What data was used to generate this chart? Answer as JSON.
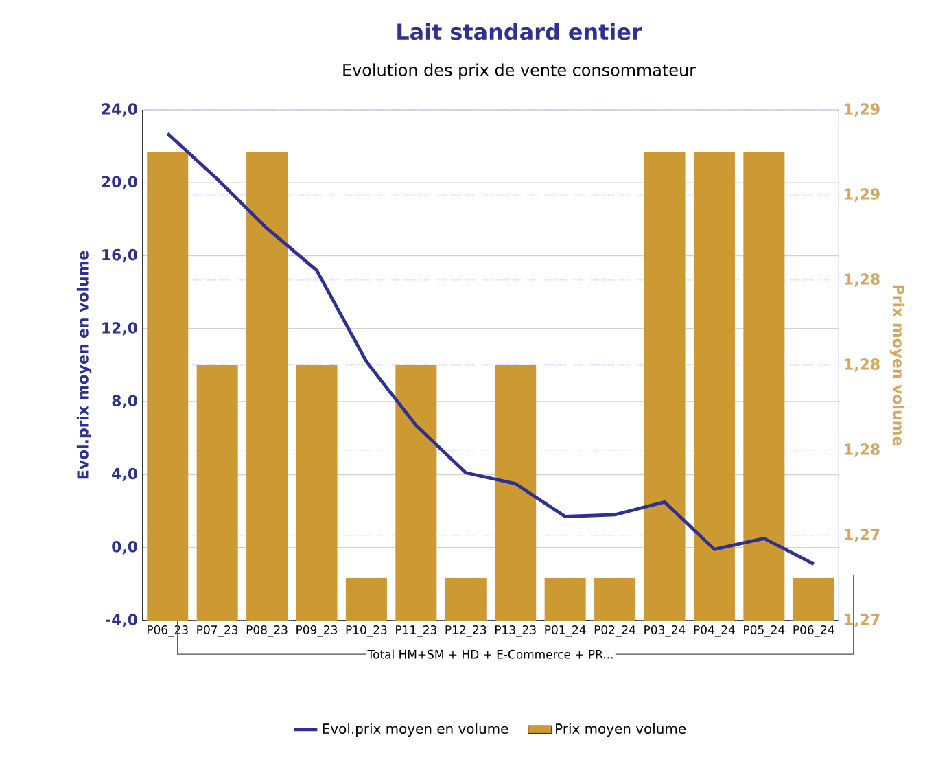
{
  "chart_data": {
    "type": "bar",
    "title": "Lait standard entier",
    "subtitle": "Evolution des prix de vente consommateur",
    "ylabel": "Evol.prix moyen en volume",
    "y2label": "Prix moyen volume",
    "categories": [
      "P06_23",
      "P07_23",
      "P08_23",
      "P09_23",
      "P10_23",
      "P11_23",
      "P12_23",
      "P13_23",
      "P01_24",
      "P02_24",
      "P03_24",
      "P04_24",
      "P05_24",
      "P06_24"
    ],
    "series": [
      {
        "name": "Evol.prix moyen en volume",
        "type": "line",
        "axis": "y",
        "color": "#2e3192",
        "values": [
          22.7,
          20.2,
          17.5,
          15.2,
          10.2,
          6.7,
          4.1,
          3.5,
          1.7,
          1.8,
          2.5,
          -0.1,
          0.5,
          -0.9
        ]
      },
      {
        "name": "Prix moyen volume",
        "axis": "y2",
        "color": "#cc9933",
        "values": [
          1.29,
          1.28,
          1.29,
          1.28,
          1.27,
          1.28,
          1.27,
          1.28,
          1.27,
          1.27,
          1.29,
          1.29,
          1.29,
          1.27
        ]
      }
    ],
    "ylim": [
      -4,
      24
    ],
    "yticks": [
      {
        "value": -4,
        "label": "-4,0"
      },
      {
        "value": 0,
        "label": "0,0"
      },
      {
        "value": 4,
        "label": "4,0"
      },
      {
        "value": 8,
        "label": "8,0"
      },
      {
        "value": 12,
        "label": "12,0"
      },
      {
        "value": 16,
        "label": "16,0"
      },
      {
        "value": 20,
        "label": "20,0"
      },
      {
        "value": 24,
        "label": "24,0"
      }
    ],
    "y2lim": [
      1.268,
      1.292
    ],
    "y2ticks": [
      {
        "value": 1.268,
        "label": "1,27"
      },
      {
        "value": 1.272,
        "label": "1,27"
      },
      {
        "value": 1.276,
        "label": "1,28"
      },
      {
        "value": 1.28,
        "label": "1,28"
      },
      {
        "value": 1.284,
        "label": "1,28"
      },
      {
        "value": 1.288,
        "label": "1,29"
      },
      {
        "value": 1.292,
        "label": "1,29"
      }
    ],
    "annotations": [
      "Total HM+SM + HD + E-Commerce + PR..."
    ],
    "grid": "y",
    "legend": "bottom",
    "marker": "none",
    "line_style": "solid"
  }
}
